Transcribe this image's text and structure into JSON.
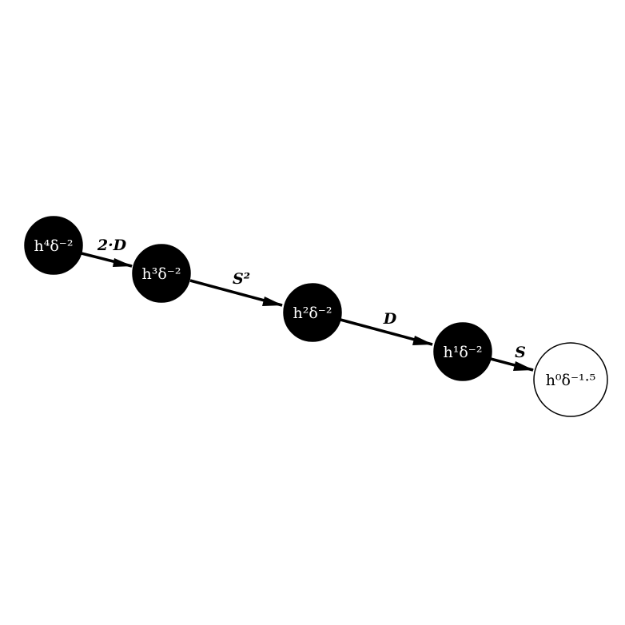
{
  "diagram": {
    "nodes": [
      {
        "id": "n4",
        "label": "h⁴δ⁻²",
        "filled": true
      },
      {
        "id": "n3",
        "label": "h³δ⁻²",
        "filled": true
      },
      {
        "id": "n2",
        "label": "h²δ⁻²",
        "filled": true
      },
      {
        "id": "n1",
        "label": "h¹δ⁻²",
        "filled": true
      },
      {
        "id": "n0",
        "label": "h⁰δ⁻¹·⁵",
        "filled": false
      }
    ],
    "edges": [
      {
        "from": "n4",
        "to": "n3",
        "label": "2·D"
      },
      {
        "from": "n3",
        "to": "n2",
        "label": "S²"
      },
      {
        "from": "n2",
        "to": "n1",
        "label": "D"
      },
      {
        "from": "n1",
        "to": "n0",
        "label": "S"
      }
    ]
  }
}
